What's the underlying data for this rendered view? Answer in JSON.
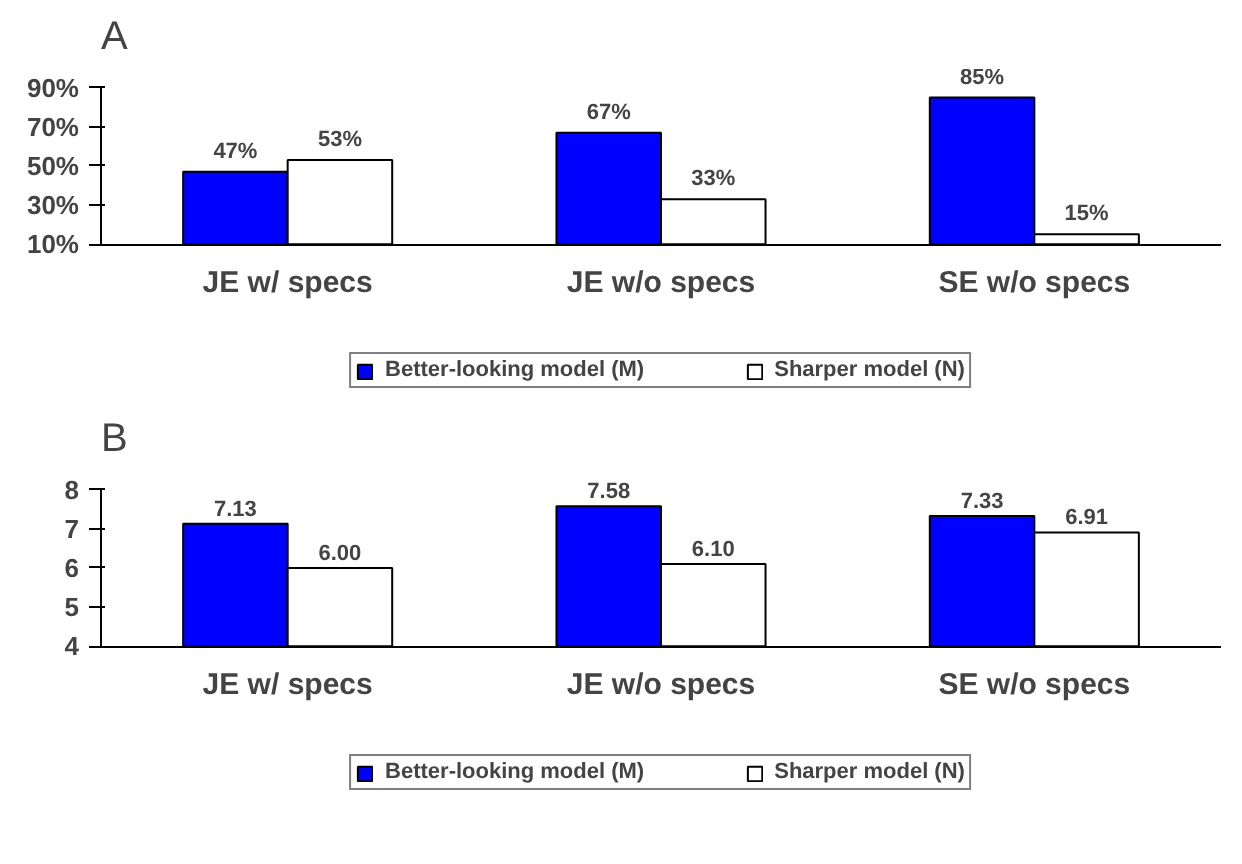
{
  "chart_data": [
    {
      "type": "bar",
      "title": "A",
      "categories": [
        "JE w/ specs",
        "JE w/o specs",
        "SE w/o specs"
      ],
      "ylim": [
        10,
        90
      ],
      "yticks": [
        {
          "value": 10,
          "label": "10%"
        },
        {
          "value": 30,
          "label": "30%"
        },
        {
          "value": 50,
          "label": "50%"
        },
        {
          "value": 70,
          "label": "70%"
        },
        {
          "value": 90,
          "label": "90%"
        }
      ],
      "grid": false,
      "legend": "bottom",
      "series": [
        {
          "name": "Better-looking model (M)",
          "color": "#0000ff",
          "values": [
            47,
            67,
            85
          ],
          "value_labels": [
            "47%",
            "67%",
            "85%"
          ]
        },
        {
          "name": "Sharper model (N)",
          "color": "#ffffff",
          "values": [
            53,
            33,
            15
          ],
          "value_labels": [
            "53%",
            "33%",
            "15%"
          ]
        }
      ]
    },
    {
      "type": "bar",
      "title": "B",
      "categories": [
        "JE w/ specs",
        "JE w/o specs",
        "SE w/o specs"
      ],
      "ylim": [
        4,
        8
      ],
      "yticks": [
        4,
        5,
        6,
        7,
        8
      ],
      "grid": false,
      "legend": "bottom",
      "series": [
        {
          "name": "Better-looking model (M)",
          "color": "#0000ff",
          "values": [
            7.13,
            7.58,
            7.33
          ],
          "value_labels": [
            "7.13",
            "7.58",
            "7.33"
          ]
        },
        {
          "name": "Sharper model (N)",
          "color": "#ffffff",
          "values": [
            6.0,
            6.1,
            6.91
          ],
          "value_labels": [
            "6.00",
            "6.10",
            "6.91"
          ]
        }
      ]
    }
  ]
}
